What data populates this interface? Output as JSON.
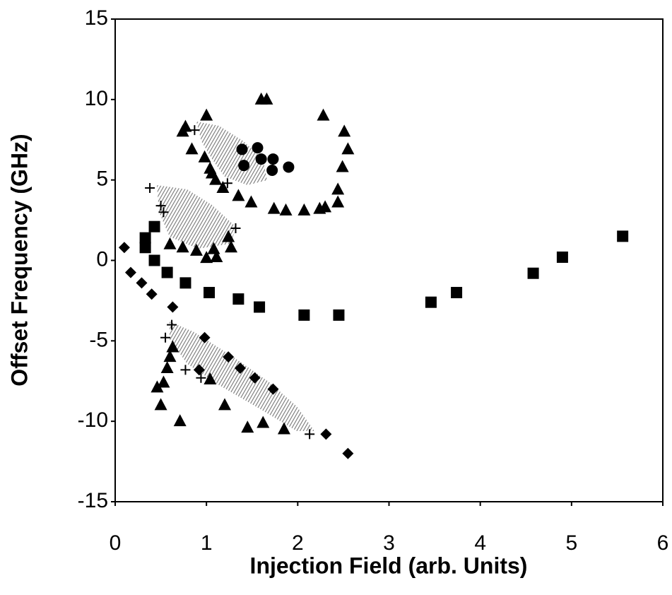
{
  "chart_data": {
    "type": "scatter",
    "x_label": "Injection Field (arb. Units)",
    "y_label": "Offset Frequency (GHz)",
    "xlim": [
      0,
      6
    ],
    "xticks": [
      0,
      1,
      2,
      3,
      4,
      5,
      6
    ],
    "ylim": [
      -15,
      15
    ],
    "yticks": [
      -15,
      -10,
      -5,
      0,
      5,
      10,
      15
    ],
    "series": [
      {
        "marker": "triangle",
        "color": "#000000",
        "x": [
          0.77,
          0.74,
          1.0,
          0.84,
          0.98,
          1.04,
          1.06,
          1.1,
          1.18,
          1.35,
          1.49,
          1.74,
          1.87,
          2.07,
          2.24,
          2.3,
          2.44,
          2.44,
          2.49,
          2.55,
          2.51,
          2.28,
          1.66,
          1.6,
          1.24,
          1.27,
          0.6,
          0.74,
          0.89,
          1.0,
          1.11,
          1.08,
          0.63,
          0.6,
          0.57,
          0.53,
          0.46,
          0.5,
          0.71,
          1.04,
          1.2,
          1.45,
          1.62,
          1.85
        ],
        "values": [
          8.3,
          8.0,
          9.0,
          6.9,
          6.4,
          5.7,
          5.4,
          5.0,
          4.5,
          4.0,
          3.6,
          3.2,
          3.1,
          3.1,
          3.2,
          3.3,
          3.6,
          4.4,
          5.8,
          6.9,
          8.0,
          9.0,
          10.0,
          10.0,
          1.45,
          0.8,
          1.0,
          0.8,
          0.6,
          0.15,
          0.2,
          0.7,
          -5.4,
          -6.0,
          -6.7,
          -7.6,
          -7.9,
          -9.0,
          -10.0,
          -7.4,
          -9.0,
          -10.4,
          -10.1,
          -10.5
        ]
      },
      {
        "marker": "square",
        "color": "#000000",
        "x": [
          0.43,
          0.33,
          0.33,
          0.43,
          0.57,
          0.77,
          1.03,
          1.35,
          1.58,
          2.07,
          2.45,
          3.46,
          3.74,
          4.58,
          4.9,
          5.56
        ],
        "values": [
          2.1,
          1.4,
          0.8,
          0.0,
          -0.75,
          -1.4,
          -2.0,
          -2.4,
          -2.9,
          -3.4,
          -3.4,
          -2.6,
          -2.0,
          -0.8,
          0.2,
          1.5
        ]
      },
      {
        "marker": "diamond",
        "color": "#000000",
        "x": [
          0.1,
          0.17,
          0.29,
          0.4,
          0.63,
          0.98,
          0.92,
          1.24,
          1.37,
          1.53,
          1.73,
          2.31,
          2.55
        ],
        "values": [
          0.8,
          -0.75,
          -1.4,
          -2.1,
          -2.9,
          -4.8,
          -6.8,
          -6.0,
          -6.7,
          -7.3,
          -8.0,
          -10.8,
          -12.0
        ]
      },
      {
        "marker": "circle",
        "color": "#000000",
        "x": [
          1.39,
          1.56,
          1.6,
          1.73,
          1.72,
          1.9,
          1.41
        ],
        "values": [
          6.9,
          7.0,
          6.3,
          6.3,
          5.6,
          5.8,
          5.9
        ]
      },
      {
        "marker": "plus",
        "color": "#000000",
        "x": [
          0.38,
          0.5,
          0.53,
          1.32,
          0.62,
          0.55,
          0.77,
          0.94,
          2.13,
          1.23,
          0.87
        ],
        "values": [
          4.5,
          3.4,
          3.0,
          2.0,
          -4.0,
          -4.8,
          -6.8,
          -7.3,
          -10.8,
          4.8,
          8.1
        ]
      }
    ]
  }
}
